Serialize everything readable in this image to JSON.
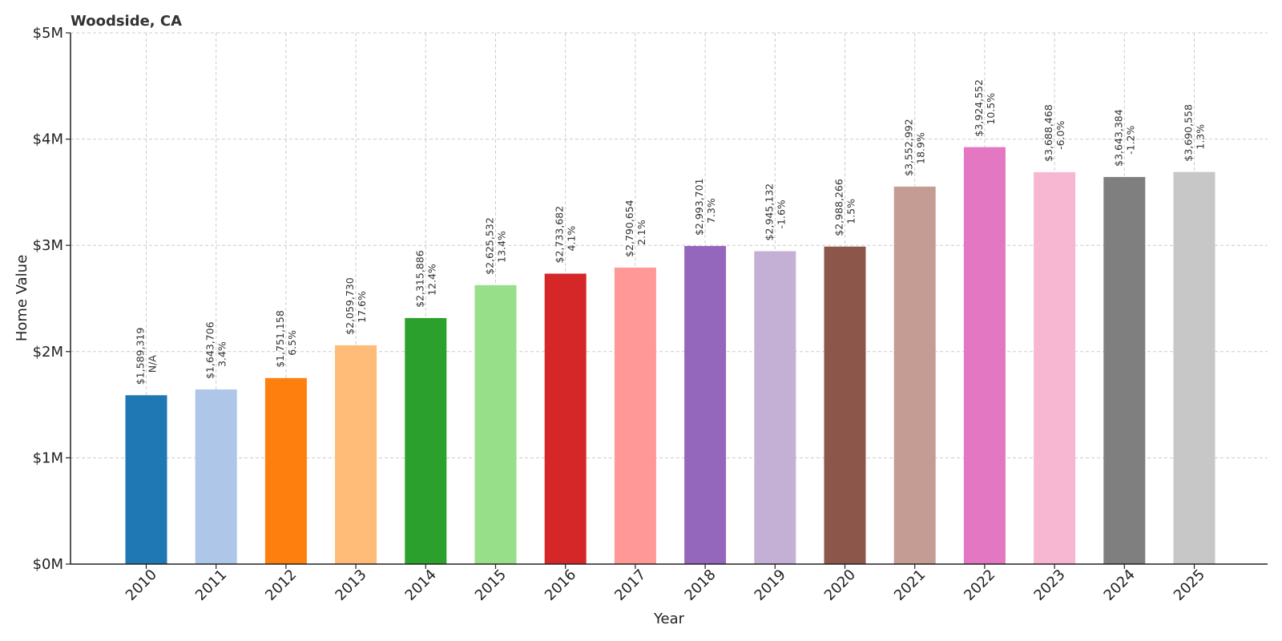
{
  "chart_data": {
    "type": "bar",
    "title": "Woodside, CA",
    "xlabel": "Year",
    "ylabel": "Home Value",
    "ylim": [
      0,
      5000000
    ],
    "yticks": [
      {
        "value": 0,
        "label": "$0M"
      },
      {
        "value": 1000000,
        "label": "$1M"
      },
      {
        "value": 2000000,
        "label": "$2M"
      },
      {
        "value": 3000000,
        "label": "$3M"
      },
      {
        "value": 4000000,
        "label": "$4M"
      },
      {
        "value": 5000000,
        "label": "$5M"
      }
    ],
    "grid": true,
    "categories": [
      "2010",
      "2011",
      "2012",
      "2013",
      "2014",
      "2015",
      "2016",
      "2017",
      "2018",
      "2019",
      "2020",
      "2021",
      "2022",
      "2023",
      "2024",
      "2025"
    ],
    "values": [
      1589319,
      1643706,
      1751158,
      2059730,
      2315886,
      2625532,
      2733682,
      2790654,
      2993701,
      2945132,
      2988266,
      3552992,
      3924552,
      3688468,
      3643384,
      3690558
    ],
    "value_labels": [
      "$1,589,319",
      "$1,643,706",
      "$1,751,158",
      "$2,059,730",
      "$2,315,886",
      "$2,625,532",
      "$2,733,682",
      "$2,790,654",
      "$2,993,701",
      "$2,945,132",
      "$2,988,266",
      "$3,552,992",
      "$3,924,552",
      "$3,688,468",
      "$3,643,384",
      "$3,690,558"
    ],
    "change_labels": [
      "N/A",
      "3.4%",
      "6.5%",
      "17.6%",
      "12.4%",
      "13.4%",
      "4.1%",
      "2.1%",
      "7.3%",
      "-1.6%",
      "1.5%",
      "18.9%",
      "10.5%",
      "-6.0%",
      "-1.2%",
      "1.3%"
    ],
    "colors": [
      "#1f77b4",
      "#aec7e8",
      "#ff7f0e",
      "#ffbb78",
      "#2ca02c",
      "#98df8a",
      "#d62728",
      "#ff9896",
      "#9467bd",
      "#c5b0d5",
      "#8c564b",
      "#c49c94",
      "#e377c2",
      "#f7b6d2",
      "#7f7f7f",
      "#c7c7c7"
    ]
  }
}
